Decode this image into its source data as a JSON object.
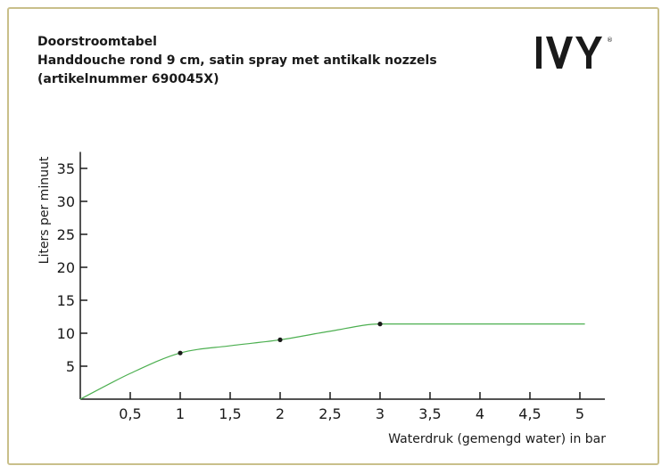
{
  "header": {
    "title_line1": "Doorstroomtabel",
    "title_line2": "Handdouche rond 9 cm, satin spray met antikalk nozzels",
    "title_line3": "(artikelnummer 690045X)"
  },
  "logo": {
    "text": "IVY",
    "mark": "®"
  },
  "colors": {
    "line": "#4caf50",
    "frame": "#c9bf8a",
    "text": "#1a1a1a"
  },
  "chart_data": {
    "type": "line",
    "xlabel": "Waterdruk (gemengd water) in bar",
    "ylabel": "Liters per minuut",
    "xlim": [
      0,
      5.25
    ],
    "ylim": [
      0,
      37.5
    ],
    "x_ticks": [
      "0,5",
      "1",
      "1,5",
      "2",
      "2,5",
      "3",
      "3,5",
      "4",
      "4,5",
      "5"
    ],
    "x_tick_values": [
      0.5,
      1,
      1.5,
      2,
      2.5,
      3,
      3.5,
      4,
      4.5,
      5
    ],
    "y_ticks": [
      "5",
      "10",
      "15",
      "20",
      "25",
      "30",
      "35"
    ],
    "y_tick_values": [
      5,
      10,
      15,
      20,
      25,
      30,
      35
    ],
    "series": [
      {
        "x": [
          0,
          0.5,
          1,
          1.5,
          2,
          2.5,
          3,
          3.5,
          4,
          4.5,
          5.05
        ],
        "y": [
          0,
          3.9,
          7.0,
          8.1,
          9.0,
          10.3,
          11.4,
          11.4,
          11.4,
          11.4,
          11.4
        ],
        "markers_x": [
          1,
          2,
          3
        ],
        "markers_y": [
          7.0,
          9.0,
          11.4
        ]
      }
    ],
    "grid": false,
    "legend": "none"
  }
}
